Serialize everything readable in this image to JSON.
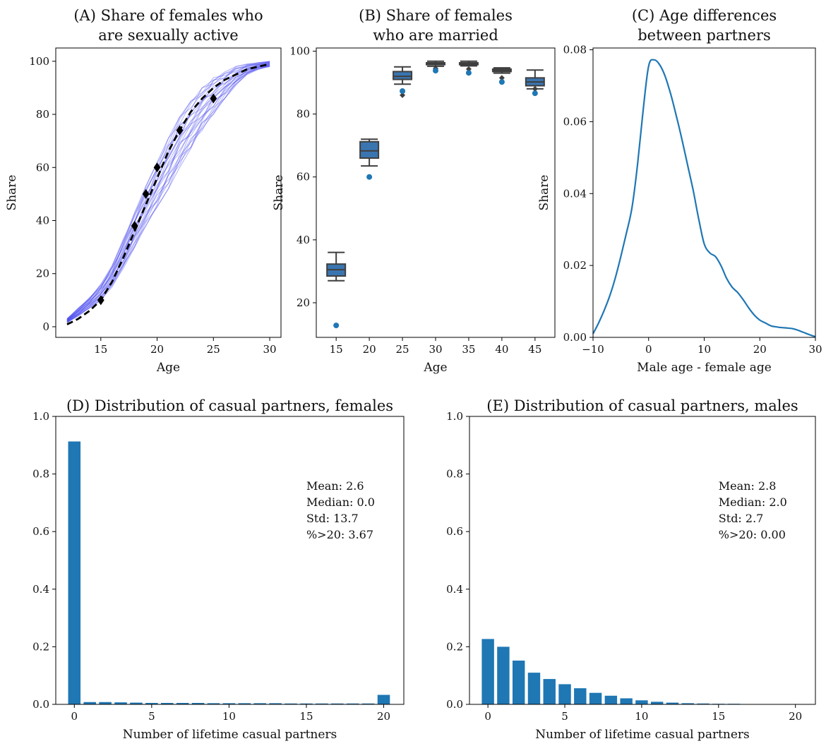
{
  "chart_data": [
    {
      "id": "A",
      "type": "line",
      "title_lines": [
        "(A) Share of females who",
        "are sexually active"
      ],
      "xlabel": "Age",
      "ylabel": "Share",
      "xlim": [
        11,
        31
      ],
      "ylim": [
        -4,
        105
      ],
      "xticks": [
        15,
        20,
        25,
        30
      ],
      "yticks": [
        0,
        20,
        40,
        60,
        80,
        100
      ],
      "sim_color": "#4040ee",
      "target_curve": {
        "style": "dashed",
        "color": "#000000",
        "x": [
          12,
          13,
          14,
          15,
          16,
          17,
          18,
          19,
          20,
          21,
          22,
          23,
          24,
          25,
          26,
          27,
          28,
          29,
          30
        ],
        "y": [
          0.9,
          3,
          6,
          10,
          17,
          26,
          36,
          46,
          56,
          66,
          74,
          81,
          86,
          90,
          93,
          95,
          97,
          98,
          99
        ]
      },
      "simulation_band": {
        "x": [
          12,
          13,
          14,
          15,
          16,
          17,
          18,
          19,
          20,
          21,
          22,
          23,
          24,
          25,
          26,
          27,
          28,
          29,
          30
        ],
        "lower": [
          1.5,
          4,
          7,
          10,
          15,
          22,
          30,
          38,
          45,
          52,
          60,
          67,
          74,
          80,
          86,
          91,
          95,
          97,
          98
        ],
        "upper": [
          3,
          7,
          11,
          16,
          23,
          33,
          43,
          53,
          62,
          71,
          79,
          85,
          90,
          94,
          96,
          98,
          99,
          99.5,
          100
        ]
      },
      "observed_points": {
        "marker": "diamond",
        "x": [
          15,
          18,
          19,
          20,
          22,
          25
        ],
        "y": [
          10,
          38,
          50,
          60,
          74,
          86
        ]
      }
    },
    {
      "id": "B",
      "type": "box",
      "title_lines": [
        "(B) Share of females",
        "who are married"
      ],
      "xlabel": "Age",
      "ylabel": "Share",
      "ylim": [
        9,
        101
      ],
      "yticks": [
        20,
        40,
        60,
        80,
        100
      ],
      "categories": [
        "15",
        "20",
        "25",
        "30",
        "35",
        "40",
        "45"
      ],
      "box_color": "#3a75b0",
      "point_color": "#1f77b4",
      "boxes": [
        {
          "whislo": 27,
          "q1": 28.5,
          "med": 30.5,
          "q3": 32.3,
          "whishi": 36,
          "fliers": []
        },
        {
          "whislo": 63.5,
          "q1": 66,
          "med": 68.3,
          "q3": 71.2,
          "whishi": 72,
          "fliers": []
        },
        {
          "whislo": 89.5,
          "q1": 91,
          "med": 92,
          "q3": 93.5,
          "whishi": 95,
          "fliers": [
            86,
            87
          ]
        },
        {
          "whislo": 95.2,
          "q1": 95.7,
          "med": 96,
          "q3": 96.3,
          "whishi": 96.8,
          "fliers": [
            94.5
          ]
        },
        {
          "whislo": 95.3,
          "q1": 95.7,
          "med": 96,
          "q3": 96.3,
          "whishi": 96.8,
          "fliers": [
            94.3
          ]
        },
        {
          "whislo": 93,
          "q1": 93.5,
          "med": 93.9,
          "q3": 94.3,
          "whishi": 94.7,
          "fliers": [
            91.5
          ]
        },
        {
          "whislo": 88,
          "q1": 89,
          "med": 90.2,
          "q3": 91.5,
          "whishi": 94,
          "fliers": [
            88
          ]
        }
      ],
      "observed": [
        12.8,
        60,
        87.3,
        93.8,
        93.1,
        90.2,
        86.6
      ]
    },
    {
      "id": "C",
      "type": "line",
      "title_lines": [
        "(C) Age differences",
        "between partners"
      ],
      "xlabel": "Male age - female age",
      "ylabel": "Share",
      "xlim": [
        -10,
        30
      ],
      "ylim": [
        0,
        0.0805
      ],
      "xticks": [
        -10,
        0,
        10,
        20,
        30
      ],
      "xtick_labels": [
        "−10",
        "0",
        "10",
        "20",
        "30"
      ],
      "yticks": [
        0,
        0.02,
        0.04,
        0.06,
        0.08
      ],
      "ytick_labels": [
        "0.00",
        "0.02",
        "0.04",
        "0.06",
        "0.08"
      ],
      "line_color": "#1f77b4",
      "x": [
        -10,
        -9,
        -8,
        -7,
        -6,
        -5,
        -4,
        -3,
        -2,
        -1,
        0,
        1,
        2,
        3,
        4,
        5,
        6,
        7,
        8,
        9,
        10,
        11,
        12,
        13,
        14,
        15,
        16,
        17,
        18,
        19,
        20,
        21,
        22,
        23,
        24,
        25,
        26,
        27,
        28,
        29,
        30
      ],
      "y": [
        0.001,
        0.004,
        0.0075,
        0.0115,
        0.0165,
        0.0225,
        0.029,
        0.036,
        0.048,
        0.063,
        0.0755,
        0.0772,
        0.0758,
        0.0725,
        0.0675,
        0.0615,
        0.055,
        0.048,
        0.041,
        0.033,
        0.026,
        0.0235,
        0.0225,
        0.02,
        0.0165,
        0.014,
        0.0125,
        0.0105,
        0.0082,
        0.0062,
        0.0048,
        0.004,
        0.0032,
        0.0029,
        0.0027,
        0.0026,
        0.0024,
        0.0019,
        0.0013,
        0.0007,
        0.0002
      ]
    },
    {
      "id": "D",
      "type": "bar",
      "title": "(D) Distribution of casual partners, females",
      "xlabel": "Number of lifetime casual partners",
      "ylabel": "",
      "xlim": [
        -1.2,
        21.3
      ],
      "ylim": [
        0,
        1.0
      ],
      "xticks": [
        0,
        5,
        10,
        15,
        20
      ],
      "yticks": [
        0,
        0.2,
        0.4,
        0.6,
        0.8,
        1.0
      ],
      "ytick_labels": [
        "0.0",
        "0.2",
        "0.4",
        "0.6",
        "0.8",
        "1.0"
      ],
      "bar_color": "#1f77b4",
      "categories": [
        0,
        1,
        2,
        3,
        4,
        5,
        6,
        7,
        8,
        9,
        10,
        11,
        12,
        13,
        14,
        15,
        16,
        17,
        18,
        19,
        20
      ],
      "values": [
        0.913,
        0.008,
        0.008,
        0.007,
        0.006,
        0.005,
        0.005,
        0.005,
        0.005,
        0.004,
        0.004,
        0.004,
        0.004,
        0.004,
        0.003,
        0.003,
        0.003,
        0.003,
        0.003,
        0.003,
        0.033
      ],
      "annotation": [
        "Mean: 2.6",
        "Median: 0.0",
        "Std: 13.7",
        "%>20: 3.67"
      ]
    },
    {
      "id": "E",
      "type": "bar",
      "title": "(E) Distribution of casual partners, males",
      "xlabel": "Number of lifetime casual partners",
      "ylabel": "",
      "xlim": [
        -1.2,
        21.3
      ],
      "ylim": [
        0,
        1.0
      ],
      "xticks": [
        0,
        5,
        10,
        15,
        20
      ],
      "yticks": [
        0,
        0.2,
        0.4,
        0.6,
        0.8,
        1.0
      ],
      "ytick_labels": [
        "0.0",
        "0.2",
        "0.4",
        "0.6",
        "0.8",
        "1.0"
      ],
      "bar_color": "#1f77b4",
      "categories": [
        0,
        1,
        2,
        3,
        4,
        5,
        6,
        7,
        8,
        9,
        10,
        11,
        12,
        13,
        14,
        15,
        16,
        17,
        18,
        19,
        20
      ],
      "values": [
        0.227,
        0.2,
        0.152,
        0.11,
        0.088,
        0.07,
        0.056,
        0.04,
        0.03,
        0.021,
        0.014,
        0.009,
        0.006,
        0.004,
        0.003,
        0.002,
        0.002,
        0.001,
        0.001,
        0.001,
        0.0
      ],
      "annotation": [
        "Mean: 2.8",
        "Median: 2.0",
        "Std: 2.7",
        "%>20: 0.00"
      ]
    }
  ]
}
